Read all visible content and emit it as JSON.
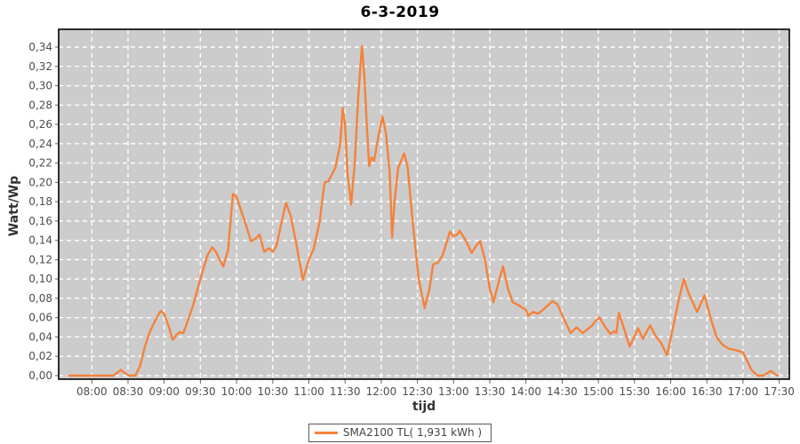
{
  "title": "6-3-2019",
  "axes": {
    "x_label": "tijd",
    "y_label": "Watt/Wp"
  },
  "legend": {
    "series_label": "SMA2100 TL( 1,931 kWh )"
  },
  "colors": {
    "series": "#f4823c",
    "plot_background": "#cccccc",
    "gridline": "#ffffff",
    "plot_border": "#000000",
    "tick_text": "#4d4d4d",
    "tick_mark": "#666666"
  },
  "chart_data": {
    "type": "line",
    "title": "6-3-2019",
    "xlabel": "tijd",
    "ylabel": "Watt/Wp",
    "ylim": [
      0,
      0.34
    ],
    "y_tick_step": 0.02,
    "y_tick_labels": [
      "0,00",
      "0,02",
      "0,04",
      "0,06",
      "0,08",
      "0,10",
      "0,12",
      "0,14",
      "0,16",
      "0,18",
      "0,20",
      "0,22",
      "0,24",
      "0,26",
      "0,28",
      "0,30",
      "0,32",
      "0,34"
    ],
    "x_tick_labels": [
      "08:00",
      "08:30",
      "09:00",
      "09:30",
      "10:00",
      "10:30",
      "11:00",
      "11:30",
      "12:00",
      "12:30",
      "13:00",
      "13:30",
      "14:00",
      "14:30",
      "15:00",
      "15:30",
      "16:00",
      "16:30",
      "17:00",
      "17:30"
    ],
    "grid": true,
    "legend_position": "bottom",
    "series": [
      {
        "name": "SMA2100 TL( 1,931 kWh )",
        "color": "#f4823c",
        "points": [
          [
            "07:41",
            0
          ],
          [
            "08:00",
            0
          ],
          [
            "08:18",
            0
          ],
          [
            "08:21",
            0.003
          ],
          [
            "08:24",
            0.006
          ],
          [
            "08:27",
            0.003
          ],
          [
            "08:31",
            0
          ],
          [
            "08:36",
            0
          ],
          [
            "08:40",
            0.01
          ],
          [
            "08:44",
            0.03
          ],
          [
            "08:48",
            0.045
          ],
          [
            "08:53",
            0.058
          ],
          [
            "08:57",
            0.067
          ],
          [
            "09:00",
            0.064
          ],
          [
            "09:04",
            0.05
          ],
          [
            "09:07",
            0.037
          ],
          [
            "09:10",
            0.042
          ],
          [
            "09:13",
            0.045
          ],
          [
            "09:16",
            0.044
          ],
          [
            "09:24",
            0.073
          ],
          [
            "09:30",
            0.1
          ],
          [
            "09:36",
            0.125
          ],
          [
            "09:40",
            0.133
          ],
          [
            "09:43",
            0.128
          ],
          [
            "09:46",
            0.12
          ],
          [
            "09:49",
            0.113
          ],
          [
            "09:53",
            0.13
          ],
          [
            "09:57",
            0.188
          ],
          [
            "10:00",
            0.185
          ],
          [
            "10:04",
            0.17
          ],
          [
            "10:08",
            0.155
          ],
          [
            "10:12",
            0.139
          ],
          [
            "10:16",
            0.142
          ],
          [
            "10:19",
            0.146
          ],
          [
            "10:23",
            0.128
          ],
          [
            "10:27",
            0.132
          ],
          [
            "10:30",
            0.128
          ],
          [
            "10:33",
            0.134
          ],
          [
            "10:41",
            0.179
          ],
          [
            "10:45",
            0.165
          ],
          [
            "10:49",
            0.14
          ],
          [
            "10:55",
            0.099
          ],
          [
            "11:00",
            0.12
          ],
          [
            "11:04",
            0.131
          ],
          [
            "11:09",
            0.16
          ],
          [
            "11:13",
            0.2
          ],
          [
            "11:16",
            0.201
          ],
          [
            "11:22",
            0.215
          ],
          [
            "11:26",
            0.24
          ],
          [
            "11:28",
            0.277
          ],
          [
            "11:30",
            0.26
          ],
          [
            "11:32",
            0.21
          ],
          [
            "11:35",
            0.177
          ],
          [
            "11:38",
            0.22
          ],
          [
            "11:41",
            0.29
          ],
          [
            "11:44",
            0.341
          ],
          [
            "11:46",
            0.31
          ],
          [
            "11:48",
            0.26
          ],
          [
            "11:50",
            0.217
          ],
          [
            "11:52",
            0.226
          ],
          [
            "11:54",
            0.222
          ],
          [
            "11:58",
            0.25
          ],
          [
            "12:01",
            0.268
          ],
          [
            "12:04",
            0.25
          ],
          [
            "12:07",
            0.21
          ],
          [
            "12:09",
            0.143
          ],
          [
            "12:11",
            0.18
          ],
          [
            "12:14",
            0.215
          ],
          [
            "12:19",
            0.23
          ],
          [
            "12:22",
            0.215
          ],
          [
            "12:26",
            0.16
          ],
          [
            "12:31",
            0.1
          ],
          [
            "12:36",
            0.07
          ],
          [
            "12:40",
            0.09
          ],
          [
            "12:43",
            0.115
          ],
          [
            "12:47",
            0.117
          ],
          [
            "12:51",
            0.125
          ],
          [
            "12:57",
            0.149
          ],
          [
            "13:00",
            0.144
          ],
          [
            "13:03",
            0.146
          ],
          [
            "13:05",
            0.15
          ],
          [
            "13:10",
            0.14
          ],
          [
            "13:15",
            0.127
          ],
          [
            "13:19",
            0.135
          ],
          [
            "13:22",
            0.139
          ],
          [
            "13:26",
            0.12
          ],
          [
            "13:30",
            0.09
          ],
          [
            "13:33",
            0.076
          ],
          [
            "13:37",
            0.095
          ],
          [
            "13:41",
            0.113
          ],
          [
            "13:45",
            0.09
          ],
          [
            "13:49",
            0.076
          ],
          [
            "13:55",
            0.072
          ],
          [
            "14:00",
            0.068
          ],
          [
            "14:02",
            0.062
          ],
          [
            "14:06",
            0.066
          ],
          [
            "14:10",
            0.064
          ],
          [
            "14:14",
            0.068
          ],
          [
            "14:22",
            0.077
          ],
          [
            "14:26",
            0.074
          ],
          [
            "14:31",
            0.06
          ],
          [
            "14:37",
            0.044
          ],
          [
            "14:42",
            0.05
          ],
          [
            "14:47",
            0.044
          ],
          [
            "14:55",
            0.052
          ],
          [
            "14:58",
            0.057
          ],
          [
            "15:01",
            0.06
          ],
          [
            "15:06",
            0.05
          ],
          [
            "15:10",
            0.043
          ],
          [
            "15:13",
            0.046
          ],
          [
            "15:15",
            0.044
          ],
          [
            "15:17",
            0.065
          ],
          [
            "15:21",
            0.05
          ],
          [
            "15:26",
            0.03
          ],
          [
            "15:33",
            0.049
          ],
          [
            "15:37",
            0.038
          ],
          [
            "15:43",
            0.052
          ],
          [
            "15:48",
            0.04
          ],
          [
            "15:52",
            0.034
          ],
          [
            "15:57",
            0.021
          ],
          [
            "16:02",
            0.05
          ],
          [
            "16:07",
            0.08
          ],
          [
            "16:11",
            0.1
          ],
          [
            "16:15",
            0.085
          ],
          [
            "16:22",
            0.066
          ],
          [
            "16:28",
            0.083
          ],
          [
            "16:33",
            0.06
          ],
          [
            "16:38",
            0.04
          ],
          [
            "16:43",
            0.032
          ],
          [
            "16:48",
            0.028
          ],
          [
            "16:55",
            0.026
          ],
          [
            "17:00",
            0.024
          ],
          [
            "17:07",
            0.006
          ],
          [
            "17:12",
            0
          ],
          [
            "17:17",
            0
          ],
          [
            "17:23",
            0.005
          ],
          [
            "17:26",
            0.002
          ],
          [
            "17:29",
            0
          ]
        ]
      }
    ]
  }
}
